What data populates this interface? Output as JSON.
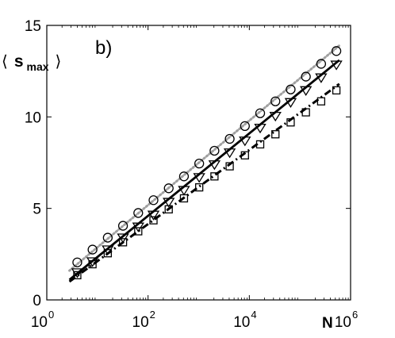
{
  "chart_data": {
    "type": "scatter",
    "panel_label": "b)",
    "title": "",
    "xlabel": "N",
    "ylabel": {
      "open": "⟨",
      "main": "s",
      "sub": "max",
      "close": "⟩"
    },
    "xscale": "log",
    "xlim": [
      1,
      1000000
    ],
    "ylim": [
      0,
      15
    ],
    "x_ticks": [
      {
        "value": 1,
        "base": "10",
        "exp": "0"
      },
      {
        "value": 100,
        "base": "10",
        "exp": "2"
      },
      {
        "value": 10000,
        "base": "10",
        "exp": "4"
      },
      {
        "value": 1000000,
        "base": "10",
        "exp": "6"
      }
    ],
    "y_ticks": [
      {
        "value": 0,
        "label": "0"
      },
      {
        "value": 5,
        "label": "5"
      },
      {
        "value": 10,
        "label": "10"
      },
      {
        "value": 15,
        "label": "15"
      }
    ],
    "grid": false,
    "legend": "none",
    "series": [
      {
        "marker": "circle",
        "x": [
          4,
          8,
          16,
          32,
          64,
          128,
          256,
          512,
          1024,
          2048,
          4096,
          8192,
          16384,
          32768,
          65536,
          131072,
          262144,
          524288
        ],
        "y": [
          2.05,
          2.75,
          3.4,
          4.05,
          4.75,
          5.45,
          6.1,
          6.75,
          7.45,
          8.15,
          8.8,
          9.5,
          10.2,
          10.85,
          11.5,
          12.2,
          12.9,
          13.6
        ]
      },
      {
        "marker": "triangle-down",
        "x": [
          4,
          8,
          16,
          32,
          64,
          128,
          256,
          512,
          1024,
          2048,
          4096,
          8192,
          16384,
          32768,
          65536,
          131072,
          262144,
          524288
        ],
        "y": [
          1.5,
          2.1,
          2.75,
          3.4,
          4.0,
          4.65,
          5.35,
          6.0,
          6.7,
          7.4,
          8.05,
          8.7,
          9.4,
          10.05,
          10.8,
          11.45,
          12.15,
          12.85
        ]
      },
      {
        "marker": "square",
        "x": [
          4,
          8,
          16,
          32,
          64,
          128,
          256,
          512,
          1024,
          2048,
          4096,
          8192,
          16384,
          32768,
          65536,
          131072,
          262144,
          524288
        ],
        "y": [
          1.35,
          1.95,
          2.55,
          3.15,
          3.75,
          4.35,
          4.95,
          5.55,
          6.15,
          6.75,
          7.3,
          7.9,
          8.5,
          9.05,
          9.7,
          10.25,
          10.85,
          11.45
        ]
      }
    ],
    "fit_lines": [
      {
        "style": "dotted-gray",
        "x": [
          2.8,
          600000
        ],
        "y": [
          1.6,
          13.9
        ]
      },
      {
        "style": "solid",
        "x": [
          2.8,
          600000
        ],
        "y": [
          1.1,
          13.1
        ]
      },
      {
        "style": "dash-dot",
        "x": [
          2.8,
          600000
        ],
        "y": [
          1.0,
          11.8
        ]
      }
    ]
  }
}
